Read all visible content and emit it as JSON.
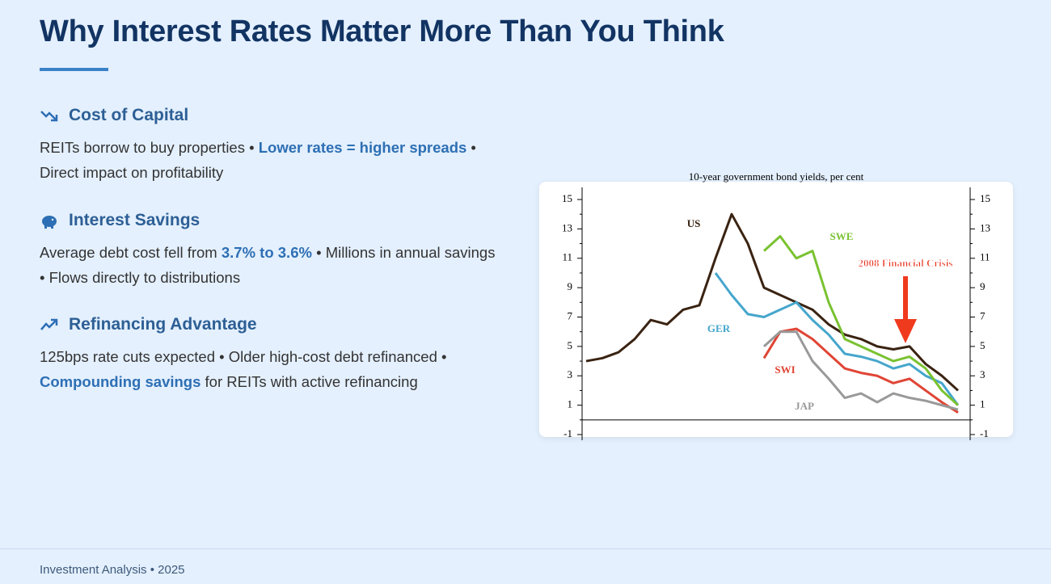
{
  "title": "Why Interest Rates Matter More Than You Think",
  "sections": [
    {
      "heading": "Cost of Capital",
      "parts": [
        {
          "text": "REITs borrow to buy properties • "
        },
        {
          "text": "Lower rates = higher spreads",
          "highlight": true
        },
        {
          "text": " • Direct impact on profitability"
        }
      ]
    },
    {
      "heading": "Interest Savings",
      "parts": [
        {
          "text": "Average debt cost fell from "
        },
        {
          "text": "3.7% to 3.6%",
          "highlight": true
        },
        {
          "text": " • Millions in annual savings • Flows directly to distributions"
        }
      ]
    },
    {
      "heading": "Refinancing Advantage",
      "parts": [
        {
          "text": "125bps rate cuts expected • Older high-cost debt refinanced • "
        },
        {
          "text": "Compounding savings",
          "highlight": true
        },
        {
          "text": " for REITs with active refinancing"
        }
      ]
    }
  ],
  "footer": "Investment Analysis • 2025",
  "chart_data": {
    "type": "line",
    "title": "10-year government bond yields, per cent",
    "categories": [
      null,
      null,
      null,
      null,
      null,
      null,
      null,
      null,
      null,
      null,
      null,
      null,
      null,
      null,
      null,
      null,
      null,
      null,
      null,
      null,
      null,
      null,
      null,
      null
    ],
    "series": [
      {
        "name": "US",
        "color": "#3a2312",
        "values": [
          4,
          4.2,
          4.6,
          5.5,
          6.8,
          6.5,
          7.5,
          7.8,
          11,
          14,
          12,
          9,
          8.5,
          8,
          7.5,
          6.5,
          5.8,
          5.5,
          5,
          4.8,
          5,
          3.8,
          3,
          2
        ]
      },
      {
        "name": "GER",
        "color": "#45a6cc",
        "values": [
          null,
          null,
          null,
          null,
          null,
          null,
          null,
          null,
          10,
          8.5,
          7.2,
          7,
          7.5,
          8,
          6.8,
          5.8,
          4.5,
          4.3,
          4,
          3.5,
          3.8,
          3,
          2.5,
          1
        ]
      },
      {
        "name": "SWE",
        "color": "#7ac231",
        "values": [
          null,
          null,
          null,
          null,
          null,
          null,
          null,
          null,
          null,
          null,
          null,
          11.5,
          12.5,
          11,
          11.5,
          8,
          5.5,
          5,
          4.5,
          4,
          4.3,
          3.5,
          2,
          1
        ]
      },
      {
        "name": "SWI",
        "color": "#e04535",
        "values": [
          null,
          null,
          null,
          null,
          null,
          null,
          null,
          null,
          null,
          null,
          null,
          4.2,
          6,
          6.2,
          5.5,
          4.5,
          3.5,
          3.2,
          3,
          2.5,
          2.8,
          2,
          1.2,
          0.5
        ]
      },
      {
        "name": "JAP",
        "color": "#999999",
        "values": [
          null,
          null,
          null,
          null,
          null,
          null,
          null,
          null,
          null,
          null,
          null,
          5,
          6,
          6,
          4,
          2.8,
          1.5,
          1.8,
          1.2,
          1.8,
          1.5,
          1.3,
          1,
          0.7
        ]
      }
    ],
    "annotation": "2008 Financial Crisis",
    "ylim": [
      -1,
      15
    ],
    "yticks": [
      -1,
      1,
      3,
      5,
      7,
      9,
      11,
      13,
      15
    ]
  }
}
